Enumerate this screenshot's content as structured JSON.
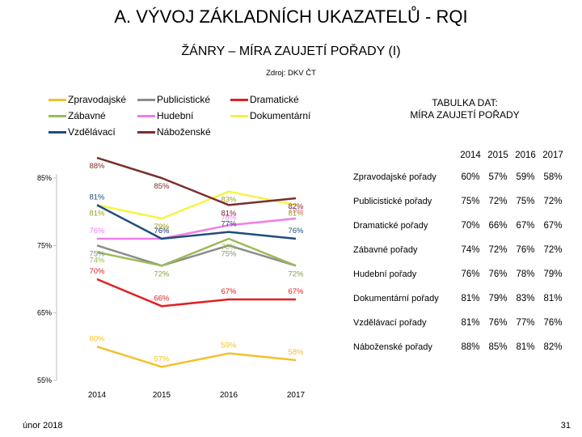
{
  "header": {
    "title": "A. VÝVOJ ZÁKLADNÍCH UKAZATELŮ - RQI",
    "subtitle": "ŽÁNRY – MÍRA ZAUJETÍ POŘADY (I)",
    "source": "Zdroj: DKV ČT"
  },
  "chart_data": {
    "type": "line",
    "x": [
      "2014",
      "2015",
      "2016",
      "2017"
    ],
    "ylim": [
      55,
      85
    ],
    "yticks": [
      "55%",
      "65%",
      "75%",
      "85%"
    ],
    "grid": false,
    "legend": "top-left",
    "series": [
      {
        "name": "Zpravodajské",
        "color": "#f2c12e",
        "values": [
          60,
          57,
          59,
          58
        ],
        "labels": [
          "60%",
          "57%",
          "59%",
          "58%"
        ]
      },
      {
        "name": "Publicistické",
        "color": "#8c8c8c",
        "values": [
          75,
          72,
          75,
          72
        ],
        "labels": [
          "75%",
          "72%",
          "75%",
          "72%"
        ]
      },
      {
        "name": "Dramatické",
        "color": "#e02020",
        "values": [
          70,
          66,
          67,
          67
        ],
        "labels": [
          "70%",
          "66%",
          "67%",
          "67%"
        ]
      },
      {
        "name": "Zábavné",
        "color": "#9bbb59",
        "values": [
          74,
          72,
          76,
          72
        ],
        "labels": [
          "74%",
          "72%",
          "76%",
          "72%"
        ]
      },
      {
        "name": "Hudební",
        "color": "#f27ce8",
        "values": [
          76,
          76,
          78,
          79
        ],
        "labels": [
          "76%",
          "76%",
          "78%",
          "79%"
        ]
      },
      {
        "name": "Dokumentární",
        "color": "#f5f542",
        "values": [
          81,
          79,
          83,
          81
        ],
        "labels": [
          "81%",
          "79%",
          "83%",
          "81%"
        ]
      },
      {
        "name": "Vzdělávací",
        "color": "#1f4e79",
        "values": [
          81,
          76,
          77,
          76
        ],
        "labels": [
          "81%",
          "76%",
          "77%",
          "76%"
        ]
      },
      {
        "name": "Náboženské",
        "color": "#7b2e2e",
        "values": [
          88,
          85,
          81,
          82
        ],
        "labels": [
          "88%",
          "85%",
          "81%",
          "82%"
        ]
      }
    ]
  },
  "table": {
    "title_line1": "TABULKA DAT:",
    "title_line2": "MÍRA ZAUJETÍ POŘADY",
    "headers": [
      "2014",
      "2015",
      "2016",
      "2017"
    ],
    "rows": [
      {
        "label": "Zpravodajské pořady",
        "values": [
          "60%",
          "57%",
          "59%",
          "58%"
        ]
      },
      {
        "label": "Publicistické pořady",
        "values": [
          "75%",
          "72%",
          "75%",
          "72%"
        ]
      },
      {
        "label": "Dramatické pořady",
        "values": [
          "70%",
          "66%",
          "67%",
          "67%"
        ]
      },
      {
        "label": "Zábavné pořady",
        "values": [
          "74%",
          "72%",
          "76%",
          "72%"
        ]
      },
      {
        "label": "Hudební pořady",
        "values": [
          "76%",
          "76%",
          "78%",
          "79%"
        ]
      },
      {
        "label": "Dokumentární pořady",
        "values": [
          "81%",
          "79%",
          "83%",
          "81%"
        ]
      },
      {
        "label": "Vzdělávací pořady",
        "values": [
          "81%",
          "76%",
          "77%",
          "76%"
        ]
      },
      {
        "label": "Náboženské pořady",
        "values": [
          "88%",
          "85%",
          "81%",
          "82%"
        ]
      }
    ]
  },
  "footer": {
    "date": "únor 2018",
    "page_number": "31"
  }
}
